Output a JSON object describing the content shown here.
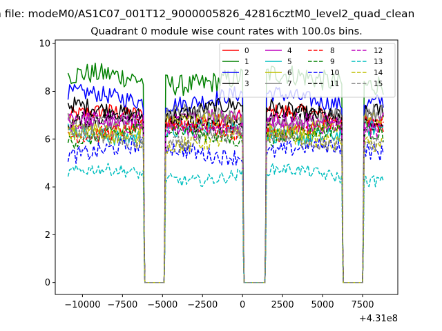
{
  "figure_title": "n file: modeM0/AS1C07_001T12_9000005826_42816cztM0_level2_quad_clean",
  "chart_data": {
    "type": "line",
    "title": "Quadrant 0 module wise count rates with 100.0s bins.",
    "xlabel": "",
    "ylabel": "",
    "x_offset_label": "+4.31e8",
    "xlim": [
      -11700,
      9700
    ],
    "ylim": [
      -0.5,
      10.15
    ],
    "xticks": [
      -10000,
      -7500,
      -5000,
      -2500,
      0,
      2500,
      5000,
      7500
    ],
    "xtick_labels": [
      "−10000",
      "−7500",
      "−5000",
      "−2500",
      "0",
      "2500",
      "5000",
      "7500"
    ],
    "yticks": [
      0,
      2,
      4,
      6,
      8,
      10
    ],
    "ytick_labels": [
      "0",
      "2",
      "4",
      "6",
      "8",
      "10"
    ],
    "grid": false,
    "legend_placement": "top-right",
    "legend_columns": 4,
    "segments": [
      {
        "start": -10900,
        "end": -6200
      },
      {
        "start": -4800,
        "end": 0
      },
      {
        "start": 1500,
        "end": 6200
      },
      {
        "start": 7600,
        "end": 8800
      }
    ],
    "gaps": [
      {
        "start": -6100,
        "end": -4900
      },
      {
        "start": 100,
        "end": 1400
      },
      {
        "start": 6300,
        "end": 7500
      }
    ],
    "series": [
      {
        "name": "0",
        "color": "#ff0000",
        "dash": "solid",
        "level": 6.9
      },
      {
        "name": "1",
        "color": "#008000",
        "dash": "solid",
        "level": 8.5
      },
      {
        "name": "2",
        "color": "#0000ff",
        "dash": "solid",
        "level": 7.7
      },
      {
        "name": "3",
        "color": "#000000",
        "dash": "solid",
        "level": 7.2
      },
      {
        "name": "4",
        "color": "#bf00bf",
        "dash": "solid",
        "level": 6.8
      },
      {
        "name": "5",
        "color": "#00bfbf",
        "dash": "solid",
        "level": 6.3
      },
      {
        "name": "6",
        "color": "#bfbf00",
        "dash": "solid",
        "level": 6.6
      },
      {
        "name": "7",
        "color": "#808080",
        "dash": "solid",
        "level": 6.9
      },
      {
        "name": "8",
        "color": "#ff0000",
        "dash": "dashed",
        "level": 6.4
      },
      {
        "name": "9",
        "color": "#008000",
        "dash": "dashed",
        "level": 6.2
      },
      {
        "name": "10",
        "color": "#0000ff",
        "dash": "dashed",
        "level": 5.5
      },
      {
        "name": "11",
        "color": "#000000",
        "dash": "dashed",
        "level": 6.8
      },
      {
        "name": "12",
        "color": "#bf00bf",
        "dash": "dashed",
        "level": 6.6
      },
      {
        "name": "13",
        "color": "#00bfbf",
        "dash": "dashed",
        "level": 4.5
      },
      {
        "name": "14",
        "color": "#bfbf00",
        "dash": "dashed",
        "level": 6.0
      },
      {
        "name": "15",
        "color": "#808080",
        "dash": "dashed",
        "level": 6.0
      }
    ]
  }
}
